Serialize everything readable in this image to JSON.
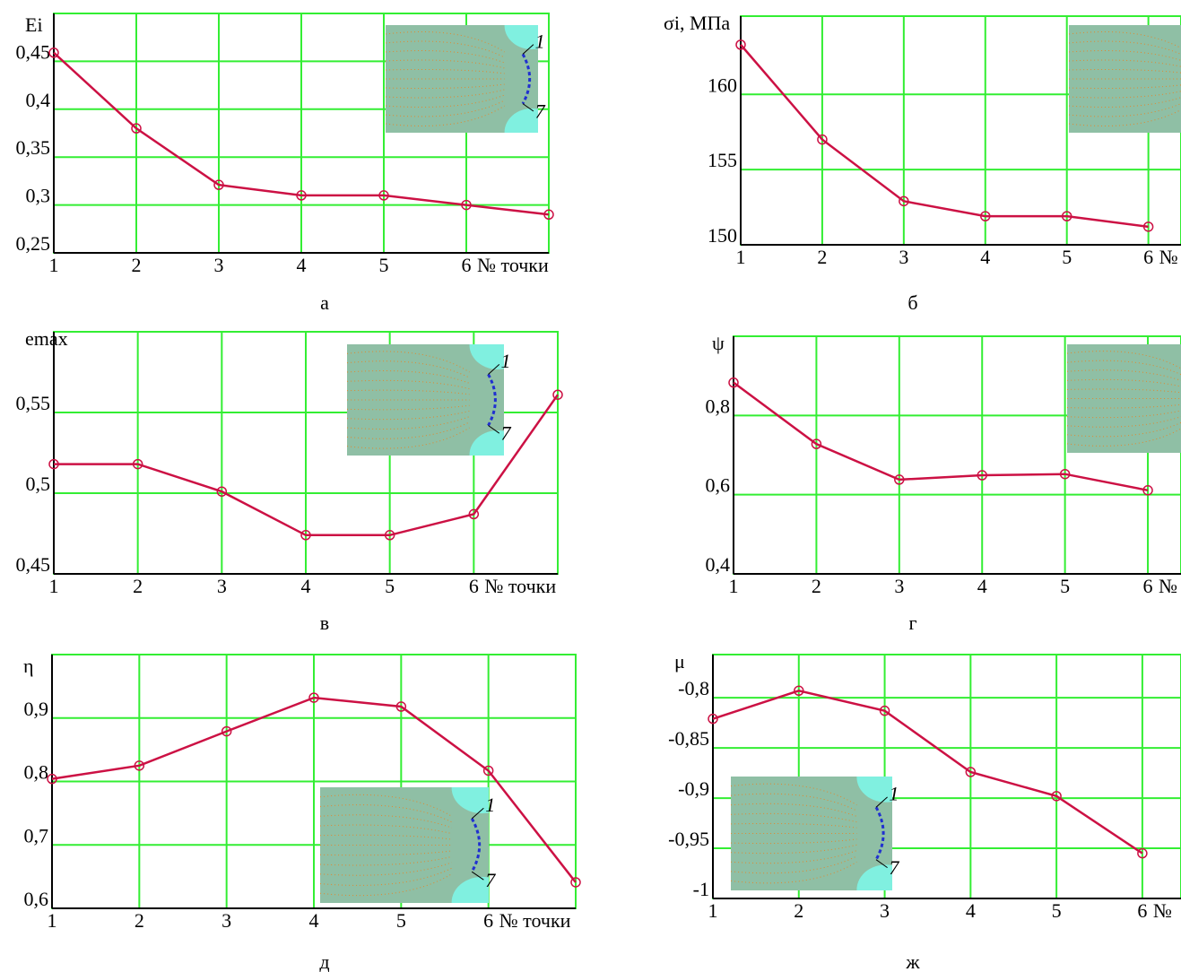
{
  "chart_data": [
    {
      "type": "line",
      "ylabel": "Ei",
      "xlabel": "№ точки",
      "caption": "а",
      "color": "#cc1144",
      "grid": true,
      "x": [
        1,
        2,
        3,
        4,
        5,
        6,
        7
      ],
      "values": [
        0.459,
        0.38,
        0.321,
        0.31,
        0.31,
        0.3,
        0.29
      ],
      "xlim": [
        1,
        7
      ],
      "xticks": [
        1,
        2,
        3,
        4,
        5,
        6
      ],
      "ylim": [
        0.25,
        0.5
      ],
      "yticks": [
        {
          "value": 0.25,
          "label": "0,25"
        },
        {
          "value": 0.3,
          "label": "0,3"
        },
        {
          "value": 0.35,
          "label": "0,35"
        },
        {
          "value": 0.4,
          "label": "0,4"
        },
        {
          "value": 0.45,
          "label": "0,45"
        }
      ],
      "inset_labels": [
        "1",
        "7"
      ]
    },
    {
      "type": "line",
      "ylabel": "σi, МПа",
      "xlabel": "№",
      "caption": "б",
      "color": "#cc1144",
      "grid": true,
      "x": [
        1,
        2,
        3,
        4,
        5,
        6
      ],
      "values": [
        163.3,
        157.0,
        152.9,
        151.9,
        151.9,
        151.2
      ],
      "xlim": [
        1,
        6.4
      ],
      "xticks": [
        1,
        2,
        3,
        4,
        5,
        6
      ],
      "ylim": [
        150,
        165.2
      ],
      "yticks": [
        150,
        155,
        160
      ]
    },
    {
      "type": "line",
      "ylabel": "emax",
      "xlabel": "№ точки",
      "caption": "в",
      "color": "#cc1144",
      "grid": true,
      "x": [
        1,
        2,
        3,
        4,
        5,
        6,
        7
      ],
      "values": [
        0.518,
        0.518,
        0.501,
        0.474,
        0.474,
        0.487,
        0.561
      ],
      "xlim": [
        1,
        7
      ],
      "xticks": [
        1,
        2,
        3,
        4,
        5,
        6
      ],
      "ylim": [
        0.45,
        0.6
      ],
      "yticks": [
        {
          "value": 0.45,
          "label": "0,45"
        },
        {
          "value": 0.5,
          "label": "0,5"
        },
        {
          "value": 0.55,
          "label": "0,55"
        }
      ],
      "inset_labels": [
        "1",
        "7"
      ]
    },
    {
      "type": "line",
      "ylabel": "ψ",
      "xlabel": "№",
      "caption": "г",
      "color": "#cc1144",
      "grid": true,
      "x": [
        1,
        2,
        3,
        4,
        5,
        6
      ],
      "values": [
        0.883,
        0.728,
        0.638,
        0.649,
        0.652,
        0.611
      ],
      "xlim": [
        1,
        6.4
      ],
      "xticks": [
        1,
        2,
        3,
        4,
        5,
        6
      ],
      "ylim": [
        0.4,
        1.0
      ],
      "yticks": [
        {
          "value": 0.4,
          "label": "0,4"
        },
        {
          "value": 0.6,
          "label": "0,6"
        },
        {
          "value": 0.8,
          "label": "0,8"
        }
      ]
    },
    {
      "type": "line",
      "ylabel": "η",
      "xlabel": "№ точки",
      "caption": "д",
      "color": "#cc1144",
      "grid": true,
      "x": [
        1,
        2,
        3,
        4,
        5,
        6,
        7
      ],
      "values": [
        0.804,
        0.825,
        0.879,
        0.932,
        0.918,
        0.817,
        0.641
      ],
      "xlim": [
        1,
        7
      ],
      "xticks": [
        1,
        2,
        3,
        4,
        5,
        6
      ],
      "ylim": [
        0.6,
        1.0
      ],
      "yticks": [
        {
          "value": 0.6,
          "label": "0,6"
        },
        {
          "value": 0.7,
          "label": "0,7"
        },
        {
          "value": 0.8,
          "label": "0,8"
        },
        {
          "value": 0.9,
          "label": "0,9"
        }
      ],
      "inset_labels": [
        "1",
        "7"
      ]
    },
    {
      "type": "line",
      "ylabel": "μ",
      "xlabel": "№",
      "caption": "ж",
      "color": "#cc1144",
      "grid": true,
      "x": [
        1,
        2,
        3,
        4,
        5,
        6
      ],
      "values": [
        -0.821,
        -0.793,
        -0.813,
        -0.874,
        -0.898,
        -0.955
      ],
      "xlim": [
        1,
        6.45
      ],
      "xticks": [
        1,
        2,
        3,
        4,
        5,
        6
      ],
      "ylim": [
        -1,
        -0.757
      ],
      "yticks": [
        {
          "value": -1,
          "label": "-1"
        },
        {
          "value": -0.95,
          "label": "-0,95"
        },
        {
          "value": -0.9,
          "label": "-0,9"
        },
        {
          "value": -0.85,
          "label": "-0,85"
        },
        {
          "value": -0.8,
          "label": "-0,8"
        }
      ],
      "inset_labels": [
        "1",
        "7"
      ]
    }
  ]
}
